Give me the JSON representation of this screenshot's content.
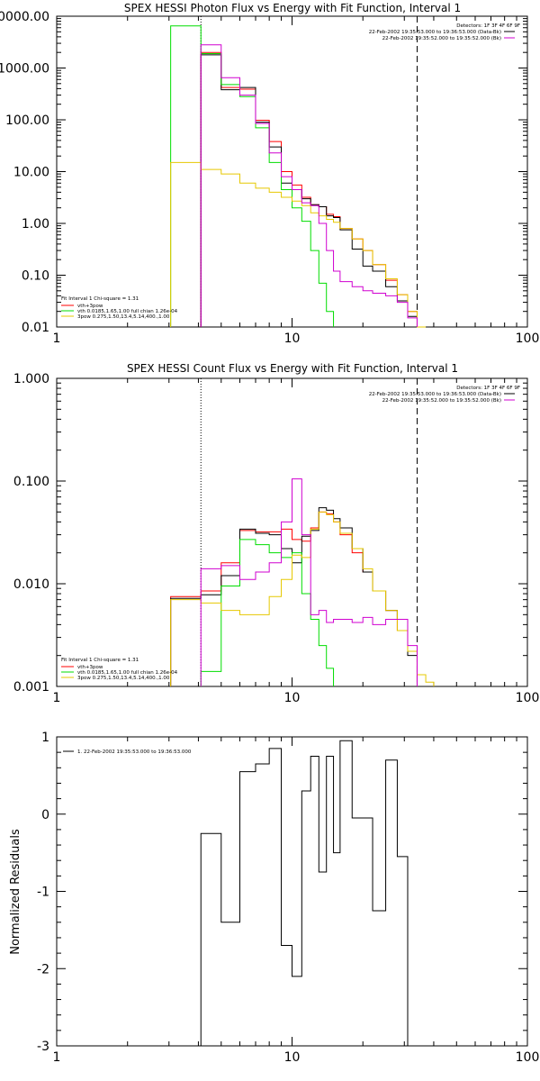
{
  "chart_data": [
    {
      "type": "line",
      "step": true,
      "title": "SPEX HESSI Photon Flux vs Energy with Fit Function, Interval 1",
      "xlabel": "",
      "ylabel": "",
      "xscale": "log",
      "yscale": "log",
      "xlim": [
        1,
        100
      ],
      "ylim": [
        0.01,
        10000
      ],
      "xticks": [
        {
          "v": 1,
          "label": "1"
        },
        {
          "v": 10,
          "label": "10"
        },
        {
          "v": 100,
          "label": "100"
        }
      ],
      "yticks": [
        {
          "v": 0.01,
          "label": "0.01"
        },
        {
          "v": 0.1,
          "label": "0.10"
        },
        {
          "v": 1,
          "label": "1.00"
        },
        {
          "v": 10,
          "label": "10.00"
        },
        {
          "v": 100,
          "label": "100.00"
        },
        {
          "v": 1000,
          "label": "1000.00"
        },
        {
          "v": 10000,
          "label": "10000.00"
        }
      ],
      "info_lines": [
        "Detectors: 1F 3F 4F 6F 9F",
        "22-Feb-2002 19:35:53.000 to 19:36:53.000 (Data-Bk)",
        "22-Feb-2002 19:35:52.000 to 19:35:52.000 (Bk)"
      ],
      "legend_title": "Fit Interval  1    Chi-square = 1.31",
      "vlines": [
        {
          "x": 4.1,
          "style": "dotted"
        },
        {
          "x": 34,
          "style": "dashed"
        }
      ],
      "series": [
        {
          "name": "vth+3pow",
          "color": "#ff0000",
          "edges": [
            4.1,
            5,
            6,
            7,
            8,
            9,
            10,
            11,
            12,
            13,
            14,
            15,
            16,
            18,
            20,
            22,
            25,
            28,
            31,
            34
          ],
          "values": [
            2000,
            420,
            390,
            98,
            38,
            10,
            5.5,
            3.2,
            2.3,
            2.1,
            1.5,
            1.35,
            0.8,
            0.5,
            0.3,
            0.16,
            0.08,
            0.042,
            0.02
          ]
        },
        {
          "name": "",
          "color": "#000000",
          "edges": [
            4.1,
            5,
            6,
            7,
            8,
            9,
            10,
            11,
            12,
            13,
            14,
            15,
            16,
            18,
            20,
            22,
            25,
            28,
            31,
            34
          ],
          "values": [
            1800,
            380,
            420,
            90,
            30,
            6,
            4.5,
            3,
            2.3,
            2.1,
            1.4,
            1.3,
            0.75,
            0.32,
            0.15,
            0.12,
            0.06,
            0.032,
            0.016
          ]
        },
        {
          "name": "vth 0.0185,1.65,1.00  full chian 1.26e-04",
          "color": "#00dd00",
          "edges": [
            3.05,
            4.1,
            5,
            6,
            7,
            8,
            9,
            10,
            11,
            12,
            13,
            14,
            15
          ],
          "values": [
            6500,
            1900,
            480,
            280,
            70,
            15,
            4.5,
            2,
            1.1,
            0.3,
            0.07,
            0.02
          ]
        },
        {
          "name": "3pow 0.275,1.50,13.4,5.14,400.,1.00",
          "color": "#e6c800",
          "edges": [
            3.05,
            4.1,
            5,
            6,
            7,
            8,
            9,
            10,
            11,
            12,
            13,
            14,
            15,
            16,
            18,
            20,
            22,
            25,
            28,
            31,
            34,
            37
          ],
          "values": [
            15,
            11,
            9,
            6,
            4.8,
            4,
            3.2,
            2.7,
            2.2,
            1.6,
            1.4,
            1.2,
            1.05,
            0.8,
            0.5,
            0.3,
            0.16,
            0.085,
            0.042,
            0.02,
            0.01
          ]
        },
        {
          "name": "",
          "color": "#d000d0",
          "edges": [
            4.1,
            5,
            6,
            7,
            8,
            9,
            10,
            11,
            12,
            13,
            14,
            15,
            16,
            18,
            20,
            22,
            25,
            28,
            31,
            34
          ],
          "values": [
            2800,
            650,
            300,
            85,
            23,
            8,
            4.5,
            2.5,
            2.2,
            1,
            0.3,
            0.12,
            0.075,
            0.06,
            0.05,
            0.045,
            0.04,
            0.03,
            0.015
          ]
        }
      ]
    },
    {
      "type": "line",
      "step": true,
      "title": "SPEX HESSI Count Flux vs Energy with Fit Function, Interval 1",
      "xlabel": "",
      "ylabel": "",
      "xscale": "log",
      "yscale": "log",
      "xlim": [
        1,
        100
      ],
      "ylim": [
        0.001,
        1
      ],
      "xticks": [
        {
          "v": 1,
          "label": "1"
        },
        {
          "v": 10,
          "label": "10"
        },
        {
          "v": 100,
          "label": "100"
        }
      ],
      "yticks": [
        {
          "v": 0.001,
          "label": "0.001"
        },
        {
          "v": 0.01,
          "label": "0.010"
        },
        {
          "v": 0.1,
          "label": "0.100"
        },
        {
          "v": 1,
          "label": "1.000"
        }
      ],
      "info_lines": [
        "Detectors: 1F 3F 4F 6F 9F",
        "22-Feb-2002 19:35:53.000 to 19:36:53.000 (Data-Bk)",
        "22-Feb-2002 19:35:52.000 to 19:35:52.000 (Bk)"
      ],
      "legend_title": "Fit Interval  1    Chi-square = 1.31",
      "vlines": [
        {
          "x": 4.1,
          "style": "dotted"
        },
        {
          "x": 34,
          "style": "dashed"
        }
      ],
      "series": [
        {
          "name": "vth+3pow",
          "color": "#ff0000",
          "edges": [
            3.05,
            4.1,
            5,
            6,
            7,
            8,
            9,
            10,
            11,
            12,
            13,
            14,
            15,
            16,
            18,
            20,
            22,
            25,
            28,
            31,
            34
          ],
          "values": [
            0.0075,
            0.0085,
            0.016,
            0.033,
            0.032,
            0.032,
            0.034,
            0.027,
            0.026,
            0.035,
            0.05,
            0.048,
            0.04,
            0.03,
            0.02,
            0.013,
            0.0085,
            0.0055,
            0.0035,
            0.0022
          ]
        },
        {
          "name": "",
          "color": "#000000",
          "edges": [
            3.05,
            4.1,
            5,
            6,
            7,
            8,
            9,
            10,
            11,
            12,
            13,
            14,
            15,
            16,
            18,
            20,
            22,
            25,
            28,
            31,
            34
          ],
          "values": [
            0.0072,
            0.0078,
            0.012,
            0.034,
            0.031,
            0.03,
            0.022,
            0.016,
            0.029,
            0.033,
            0.055,
            0.052,
            0.043,
            0.035,
            0.022,
            0.013,
            0.0085,
            0.0055,
            0.0045,
            0.002
          ]
        },
        {
          "name": "vth 0.0185,1.65,1.00  full chian 1.26e-04",
          "color": "#00dd00",
          "edges": [
            4.1,
            5,
            6,
            7,
            8,
            9,
            10,
            11,
            12,
            13,
            14,
            15
          ],
          "values": [
            0.0014,
            0.0095,
            0.027,
            0.024,
            0.02,
            0.018,
            0.02,
            0.008,
            0.0045,
            0.0025,
            0.0015,
            0.001
          ]
        },
        {
          "name": "3pow 0.275,1.50,13.4,5.14,400.,1.00",
          "color": "#e6c800",
          "edges": [
            3.05,
            4.1,
            5,
            6,
            7,
            8,
            9,
            10,
            11,
            12,
            13,
            14,
            15,
            16,
            18,
            20,
            22,
            25,
            28,
            31,
            34,
            37,
            40
          ],
          "values": [
            0.007,
            0.0065,
            0.0055,
            0.005,
            0.005,
            0.0075,
            0.011,
            0.019,
            0.018,
            0.034,
            0.05,
            0.047,
            0.04,
            0.031,
            0.022,
            0.014,
            0.0085,
            0.0055,
            0.0035,
            0.0022,
            0.0013,
            0.0011
          ]
        },
        {
          "name": "",
          "color": "#d000d0",
          "edges": [
            4.1,
            5,
            6,
            7,
            8,
            9,
            10,
            11,
            12,
            13,
            14,
            15,
            16,
            18,
            20,
            22,
            25,
            28,
            31,
            34
          ],
          "values": [
            0.014,
            0.015,
            0.011,
            0.013,
            0.016,
            0.04,
            0.105,
            0.03,
            0.005,
            0.0055,
            0.0042,
            0.0045,
            0.0045,
            0.0042,
            0.0047,
            0.004,
            0.0045,
            0.0045,
            0.0025
          ]
        }
      ]
    },
    {
      "type": "line",
      "step": true,
      "title": "",
      "xlabel": "",
      "ylabel": "Normalized Residuals",
      "xscale": "log",
      "yscale": "linear",
      "xlim": [
        1,
        100
      ],
      "ylim": [
        -3,
        1
      ],
      "xticks": [
        {
          "v": 1,
          "label": "1"
        },
        {
          "v": 10,
          "label": "10"
        },
        {
          "v": 100,
          "label": "100"
        }
      ],
      "yticks": [
        {
          "v": -3,
          "label": "-3"
        },
        {
          "v": -2,
          "label": "-2"
        },
        {
          "v": -1,
          "label": "-1"
        },
        {
          "v": 0,
          "label": "0"
        },
        {
          "v": 1,
          "label": "1"
        }
      ],
      "legend_title": "",
      "info_lines": [],
      "vlines": [],
      "series": [
        {
          "name": "1. 22-Feb-2002 19:35:53.000 to 19:36:53.000",
          "color": "#000000",
          "edges": [
            4.1,
            5,
            6,
            7,
            8,
            9,
            10,
            11,
            12,
            13,
            14,
            15,
            16,
            18,
            20,
            22,
            25,
            28,
            31,
            34
          ],
          "values": [
            -0.25,
            -1.4,
            0.55,
            0.65,
            0.85,
            -1.7,
            -2.1,
            0.3,
            0.75,
            -0.75,
            0.75,
            -0.5,
            0.95,
            -0.05,
            -0.05,
            -1.25,
            0.7,
            -0.55,
            -3
          ]
        }
      ]
    }
  ]
}
